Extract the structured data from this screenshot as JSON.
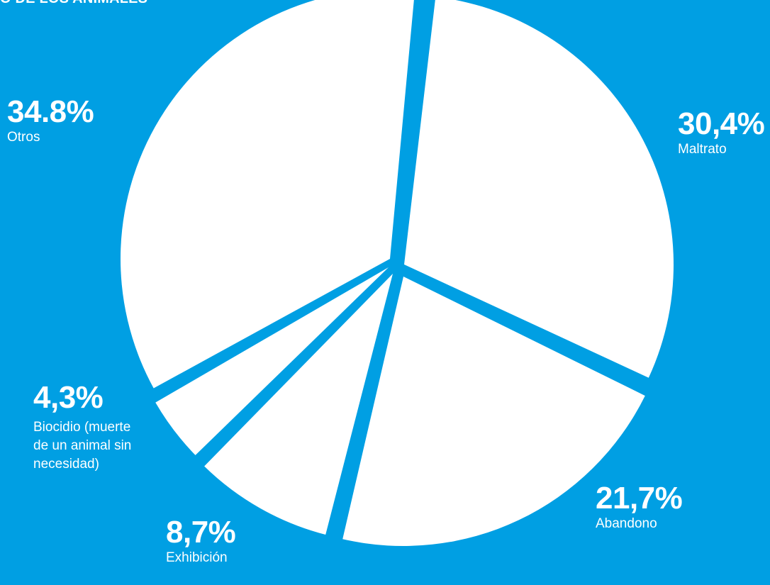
{
  "title": "O DE LOS ANIMALES",
  "colors": {
    "background": "#009fe3",
    "slice": "#ffffff",
    "text": "#ffffff"
  },
  "chart_data": {
    "type": "pie",
    "title": "O DE LOS ANIMALES",
    "legend": "none",
    "slices": [
      {
        "label": "Maltrato",
        "value": 30.4,
        "display": "30,4%"
      },
      {
        "label": "Abandono",
        "value": 21.7,
        "display": "21,7%"
      },
      {
        "label": "Exhibición",
        "value": 8.7,
        "display": "8,7%"
      },
      {
        "label": "Biocidio (muerte de un animal sin necesidad)",
        "value": 4.3,
        "display": "4,3%"
      },
      {
        "label": "Otros",
        "value": 34.8,
        "display": "34.8%"
      }
    ]
  }
}
